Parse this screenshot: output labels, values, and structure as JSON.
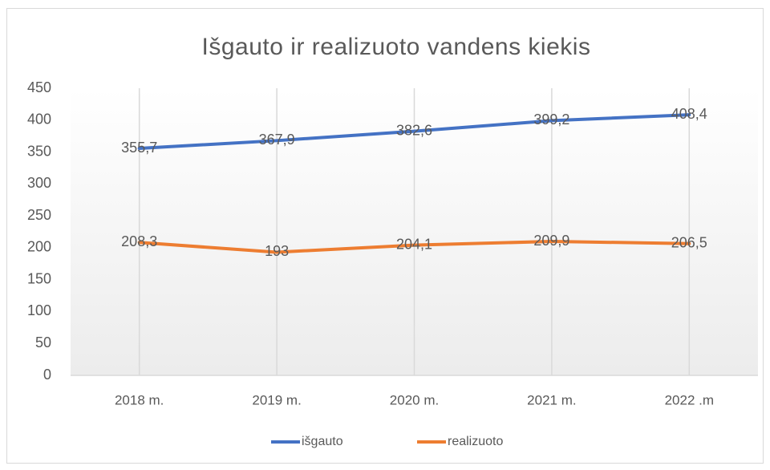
{
  "chart_data": {
    "type": "line",
    "title": "Išgauto ir realizuoto vandens kiekis",
    "categories": [
      "2018 m.",
      "2019 m.",
      "2020 m.",
      "2021 m.",
      "2022 .m"
    ],
    "series": [
      {
        "name": "išgauto",
        "color": "#4472c4",
        "values": [
          355.7,
          367.9,
          382.6,
          399.2,
          408.4
        ],
        "value_labels": [
          "355,7",
          "367,9",
          "382,6",
          "399,2",
          "408,4"
        ]
      },
      {
        "name": "realizuoto",
        "color": "#ed7d31",
        "values": [
          208.3,
          193,
          204.1,
          209.9,
          206.5
        ],
        "value_labels": [
          "208,3",
          "193",
          "204,1",
          "209,9",
          "206,5"
        ]
      }
    ],
    "ylim": [
      0,
      450
    ],
    "yticks": [
      0,
      50,
      100,
      150,
      200,
      250,
      300,
      350,
      400,
      450
    ],
    "grid": false,
    "xgrid": true,
    "legend": "bottom"
  }
}
